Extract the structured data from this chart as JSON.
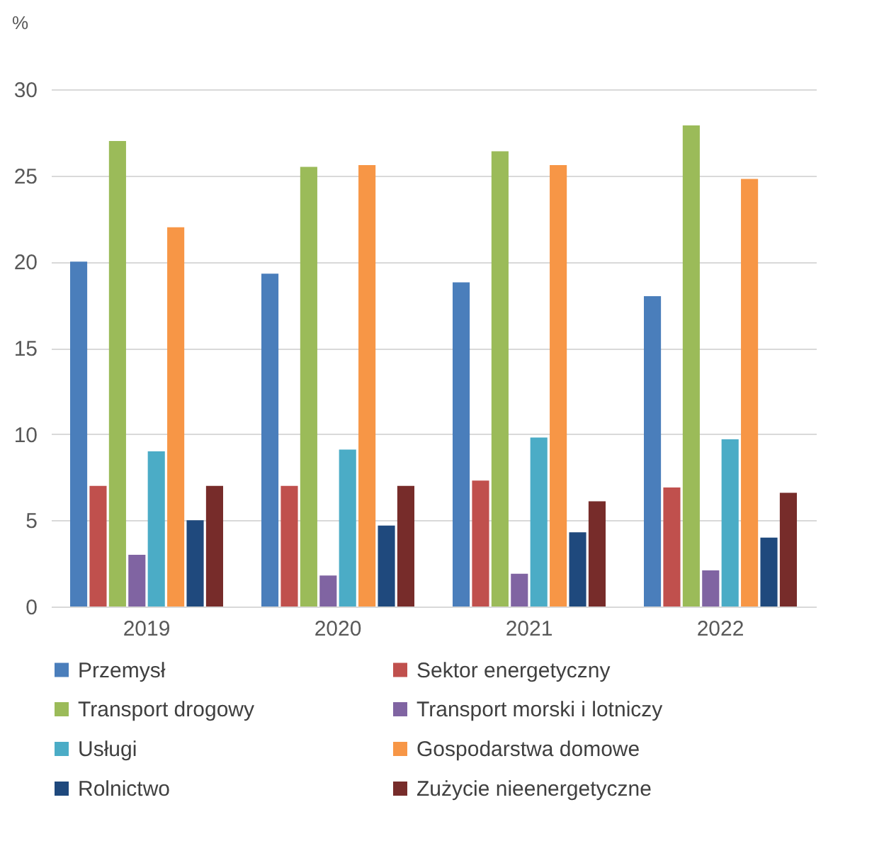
{
  "chart_data": {
    "type": "bar",
    "ylabel": "%",
    "categories": [
      "2019",
      "2020",
      "2021",
      "2022"
    ],
    "ylim": [
      0,
      30
    ],
    "yticks": [
      0,
      5,
      10,
      15,
      20,
      25,
      30
    ],
    "grid": "y",
    "legend": "bottom",
    "series": [
      {
        "name": "Przemysł",
        "color": "#4a7ebb",
        "values": [
          20,
          19.3,
          18.8,
          18
        ]
      },
      {
        "name": "Sektor energetyczny",
        "color": "#c0504d",
        "values": [
          7,
          7,
          7.3,
          6.9
        ]
      },
      {
        "name": "Transport drogowy",
        "color": "#9bbb59",
        "values": [
          27,
          25.5,
          26.4,
          27.9
        ]
      },
      {
        "name": "Transport morski i lotniczy",
        "color": "#8064a2",
        "values": [
          3,
          1.8,
          1.9,
          2.1
        ]
      },
      {
        "name": "Usługi",
        "color": "#4bacc6",
        "values": [
          9,
          9.1,
          9.8,
          9.7
        ]
      },
      {
        "name": "Gospodarstwa domowe",
        "color": "#f79646",
        "values": [
          22,
          25.6,
          25.6,
          24.8
        ]
      },
      {
        "name": "Rolnictwo",
        "color": "#1f497d",
        "values": [
          5,
          4.7,
          4.3,
          4
        ]
      },
      {
        "name": "Zużycie nieenergetyczne",
        "color": "#772c2a",
        "values": [
          7,
          7,
          6.1,
          6.6
        ]
      }
    ]
  }
}
